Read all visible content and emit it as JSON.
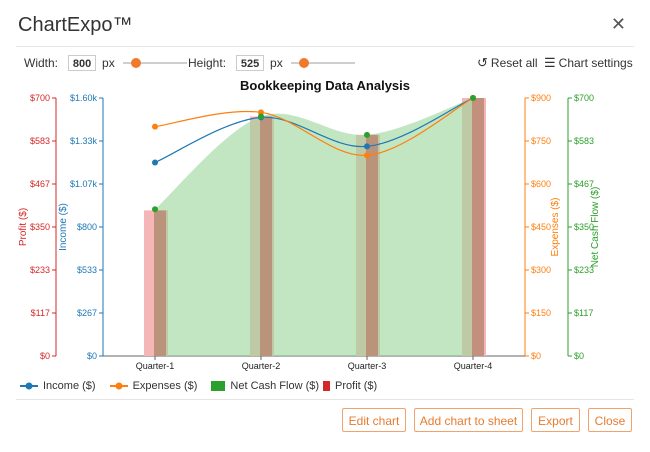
{
  "app": {
    "title": "ChartExpo™"
  },
  "toolbar": {
    "width_label": "Width:",
    "width_value": "800",
    "width_unit": "px",
    "height_label": "Height:",
    "height_value": "525",
    "height_unit": "px",
    "reset_label": "Reset all",
    "settings_label": "Chart settings"
  },
  "legend": {
    "income": "Income ($)",
    "expenses": "Expenses ($)",
    "netcash": "Net Cash Flow ($)",
    "profit": "Profit ($)"
  },
  "buttons": {
    "edit": "Edit chart",
    "add": "Add chart to sheet",
    "export": "Export",
    "close": "Close"
  },
  "colors": {
    "income": "#1f77b4",
    "expenses": "#ff7f0e",
    "netcash": "#2ca02c",
    "profit": "#d62728",
    "accent": "#e77b2f"
  },
  "chart_data": {
    "type": "combo",
    "title": "Bookkeeping Data Analysis",
    "categories": [
      "Quarter-1",
      "Quarter-2",
      "Quarter-3",
      "Quarter-4"
    ],
    "axes": {
      "profit": {
        "label": "Profit ($)",
        "ticks": [
          "$0",
          "$117",
          "$233",
          "$350",
          "$467",
          "$583",
          "$700"
        ],
        "max": 700
      },
      "income": {
        "label": "Income ($)",
        "ticks": [
          "$0",
          "$267",
          "$533",
          "$800",
          "$1.07k",
          "$1.33k",
          "$1.60k"
        ],
        "max": 1600
      },
      "expenses": {
        "label": "Expenses ($)",
        "ticks": [
          "$0",
          "$150",
          "$300",
          "$450",
          "$600",
          "$750",
          "$900"
        ],
        "max": 900
      },
      "netcash": {
        "label": "Net Cash Flow ($)",
        "ticks": [
          "$0",
          "$117",
          "$233",
          "$350",
          "$467",
          "$583",
          "$700"
        ],
        "max": 700
      }
    },
    "series": [
      {
        "name": "Profit ($)",
        "type": "bar",
        "axis": "profit",
        "values": [
          395,
          650,
          600,
          700
        ]
      },
      {
        "name": "Net Cash Flow ($)",
        "type": "area",
        "axis": "netcash",
        "values": [
          398,
          650,
          600,
          700
        ]
      },
      {
        "name": "Income ($)",
        "type": "line",
        "axis": "income",
        "values": [
          1200,
          1480,
          1300,
          1600
        ]
      },
      {
        "name": "Expenses ($)",
        "type": "line",
        "axis": "expenses",
        "values": [
          800,
          850,
          700,
          900
        ]
      }
    ]
  }
}
